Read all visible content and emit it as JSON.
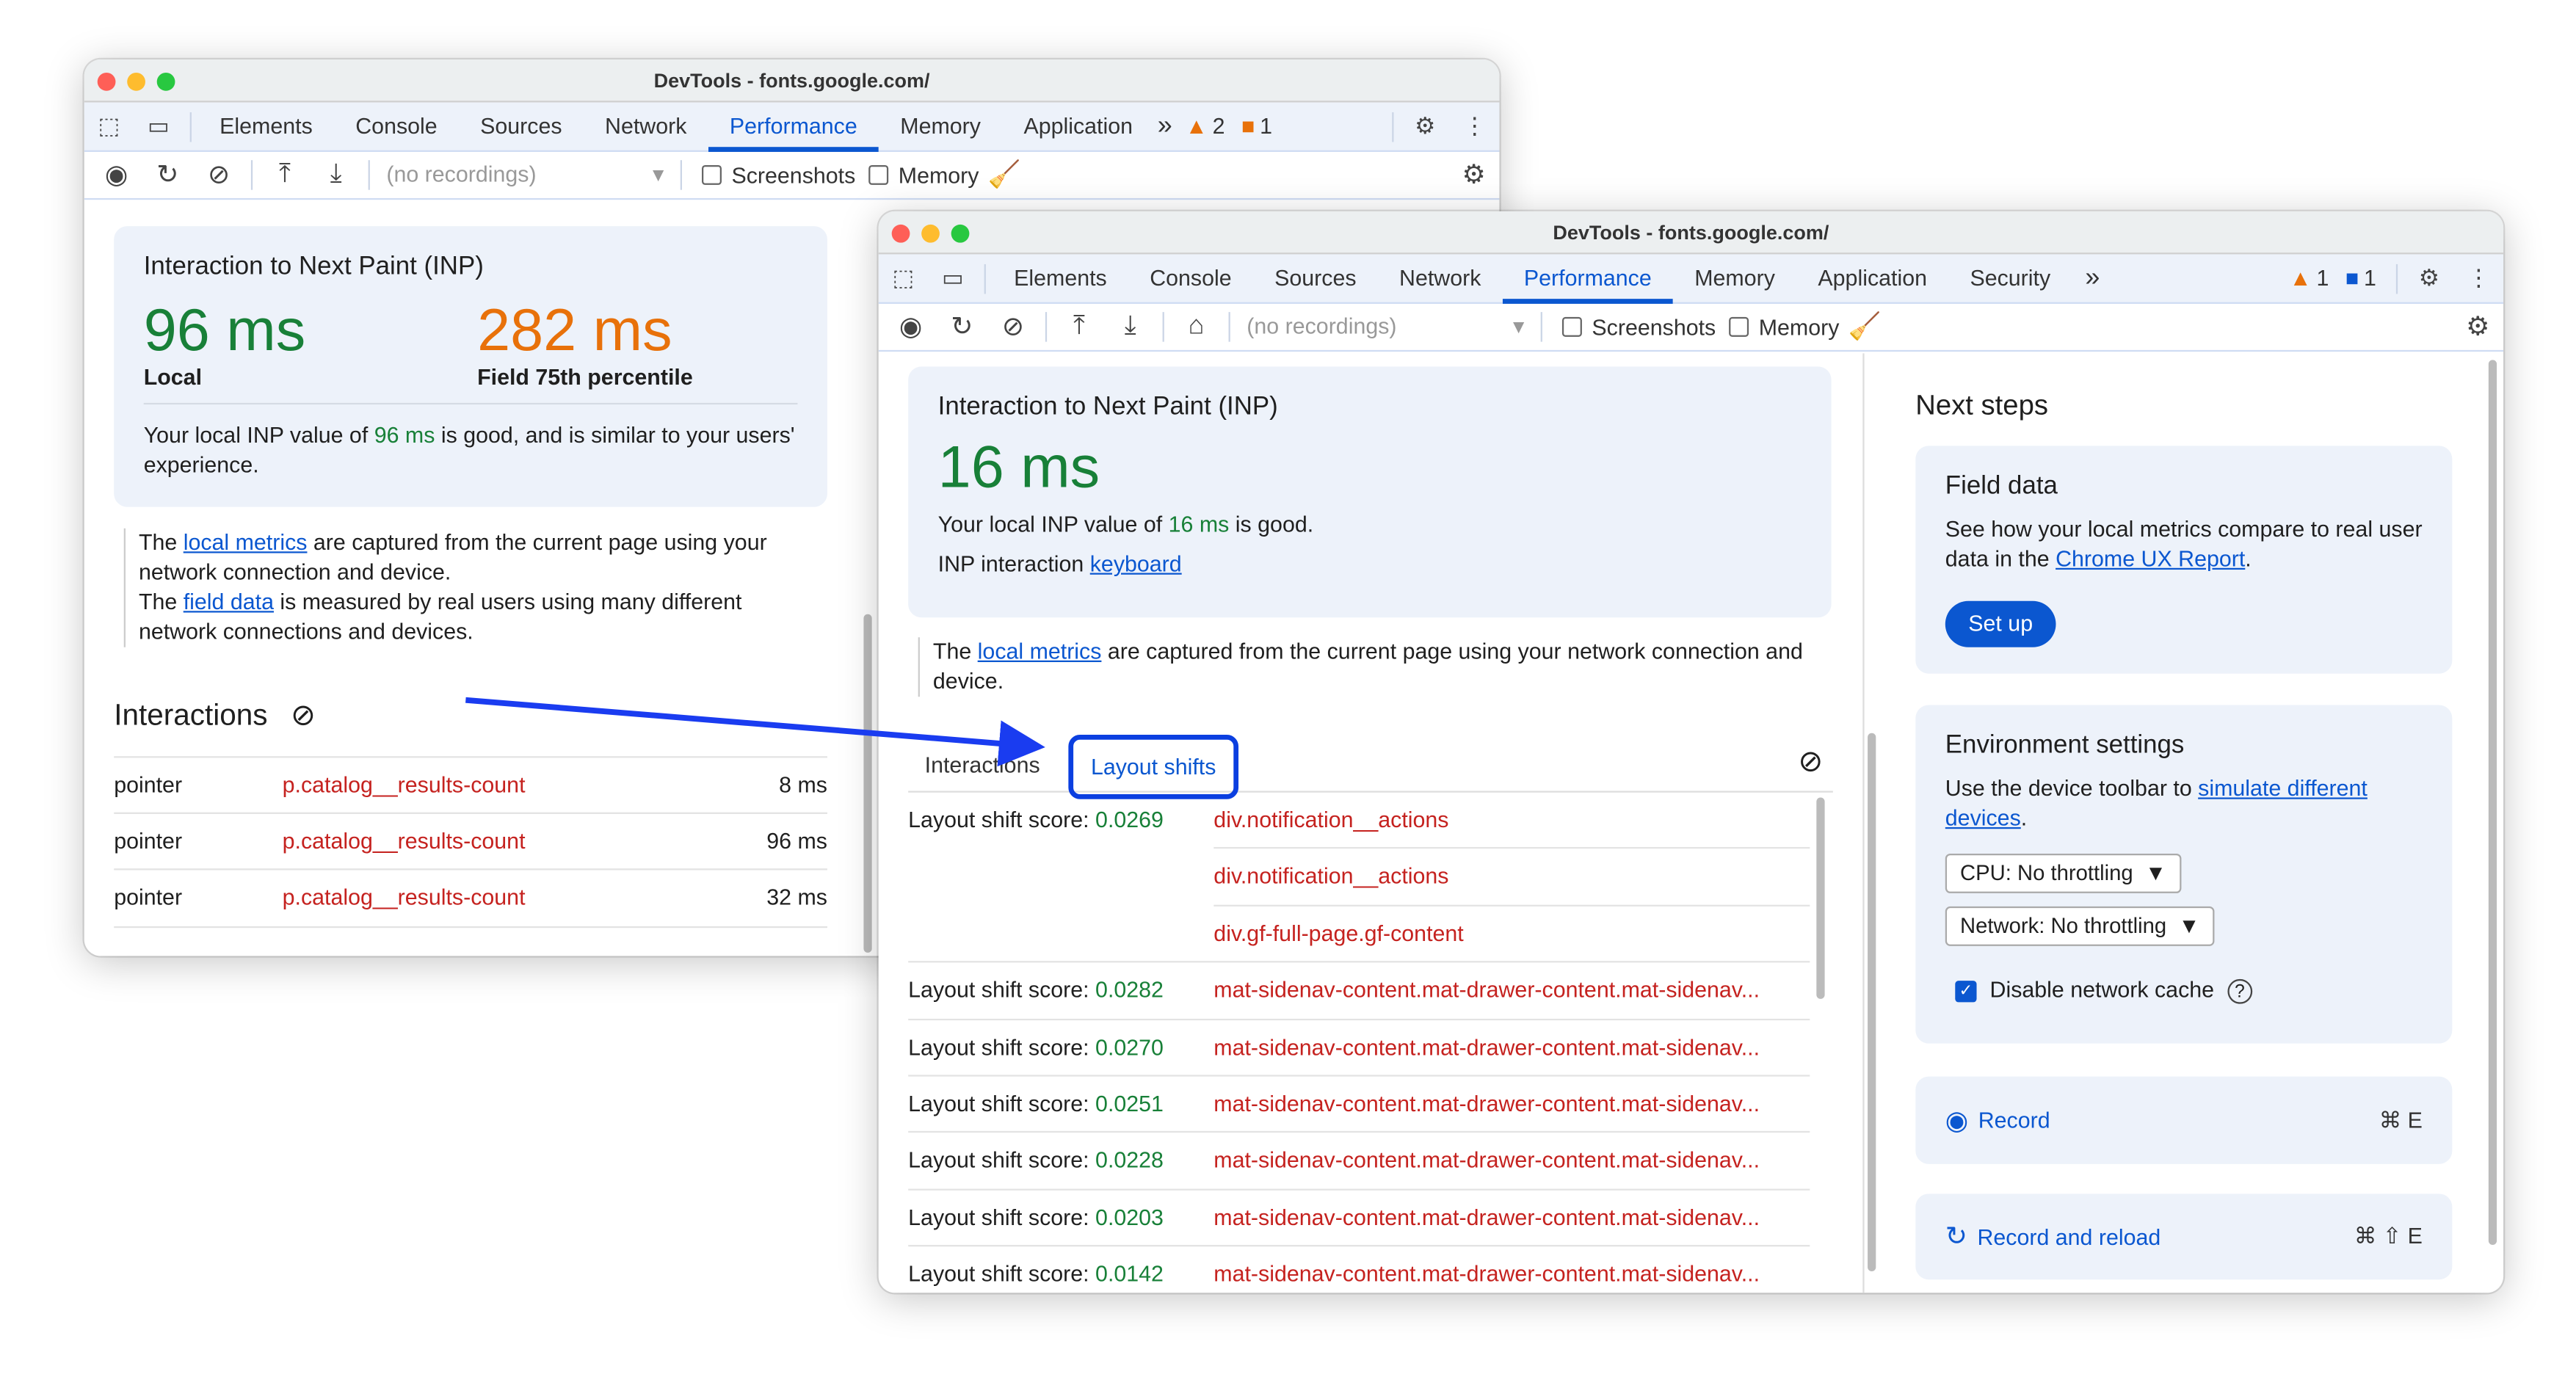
{
  "window_back": {
    "title": "DevTools - fonts.google.com/",
    "tabs": [
      "Elements",
      "Console",
      "Sources",
      "Network",
      "Performance",
      "Memory",
      "Application"
    ],
    "active_tab": "Performance",
    "more": "»",
    "warnings": "2",
    "issues": "1",
    "recordings_placeholder": "(no recordings)",
    "screenshots_label": "Screenshots",
    "memory_label": "Memory",
    "inp": {
      "title": "Interaction to Next Paint (INP)",
      "local_value": "96 ms",
      "local_label": "Local",
      "field_value": "282 ms",
      "field_label": "Field 75th percentile",
      "desc_prefix": "Your local INP value of ",
      "desc_value": "96 ms",
      "desc_suffix": " is good, and is similar to your users' experience."
    },
    "note": {
      "p1_a": "The ",
      "p1_link": "local metrics",
      "p1_b": " are captured from the current page using your network connection and device.",
      "p2_a": "The ",
      "p2_link": "field data",
      "p2_b": " is measured by real users using many different network connections and devices."
    },
    "interactions_title": "Interactions",
    "interactions": [
      {
        "type": "pointer",
        "target": "p.catalog__results-count",
        "time": "8 ms"
      },
      {
        "type": "pointer",
        "target": "p.catalog__results-count",
        "time": "96 ms"
      },
      {
        "type": "pointer",
        "target": "p.catalog__results-count",
        "time": "32 ms"
      }
    ]
  },
  "window_front": {
    "title": "DevTools - fonts.google.com/",
    "tabs": [
      "Elements",
      "Console",
      "Sources",
      "Network",
      "Performance",
      "Memory",
      "Application",
      "Security"
    ],
    "active_tab": "Performance",
    "more": "»",
    "warnings": "1",
    "messages": "1",
    "recordings_placeholder": "(no recordings)",
    "screenshots_label": "Screenshots",
    "memory_label": "Memory",
    "inp": {
      "title": "Interaction to Next Paint (INP)",
      "local_value": "16 ms",
      "desc_prefix": "Your local INP value of ",
      "desc_value": "16 ms",
      "desc_suffix": " is good.",
      "interaction_label": "INP interaction ",
      "interaction_link": "keyboard"
    },
    "note": {
      "a": "The ",
      "link": "local metrics",
      "b": " are captured from the current page using your network connection and device."
    },
    "subtabs": [
      "Interactions",
      "Layout shifts"
    ],
    "active_subtab": "Layout shifts",
    "score_label": "Layout shift score: ",
    "shifts": [
      {
        "score": "0.0269",
        "nodes": [
          "div.notification__actions",
          "div.notification__actions",
          "div.gf-full-page.gf-content"
        ]
      },
      {
        "score": "0.0282",
        "nodes": [
          "mat-sidenav-content.mat-drawer-content.mat-sidenav..."
        ]
      },
      {
        "score": "0.0270",
        "nodes": [
          "mat-sidenav-content.mat-drawer-content.mat-sidenav..."
        ]
      },
      {
        "score": "0.0251",
        "nodes": [
          "mat-sidenav-content.mat-drawer-content.mat-sidenav..."
        ]
      },
      {
        "score": "0.0228",
        "nodes": [
          "mat-sidenav-content.mat-drawer-content.mat-sidenav..."
        ]
      },
      {
        "score": "0.0203",
        "nodes": [
          "mat-sidenav-content.mat-drawer-content.mat-sidenav..."
        ]
      },
      {
        "score": "0.0142",
        "nodes": [
          "mat-sidenav-content.mat-drawer-content.mat-sidenav..."
        ]
      }
    ],
    "next_steps": {
      "title": "Next steps",
      "field": {
        "title": "Field data",
        "text_a": "See how your local metrics compare to real user data in the ",
        "link": "Chrome UX Report",
        "text_b": ".",
        "button": "Set up"
      },
      "env": {
        "title": "Environment settings",
        "text_a": "Use the device toolbar to ",
        "link": "simulate different devices",
        "text_b": ".",
        "cpu": "CPU: No throttling",
        "network": "Network: No throttling",
        "cache_label": "Disable network cache",
        "cache_checked": true
      },
      "record": {
        "label": "Record",
        "shortcut": "⌘ E"
      },
      "reload": {
        "label": "Record and reload",
        "shortcut": "⌘ ⇧ E"
      }
    }
  },
  "colors": {
    "accent": "#0b57d0",
    "good": "#188038",
    "needs_improvement": "#e8710a",
    "node": "#c5221f",
    "arrow": "#1a3cf0"
  }
}
